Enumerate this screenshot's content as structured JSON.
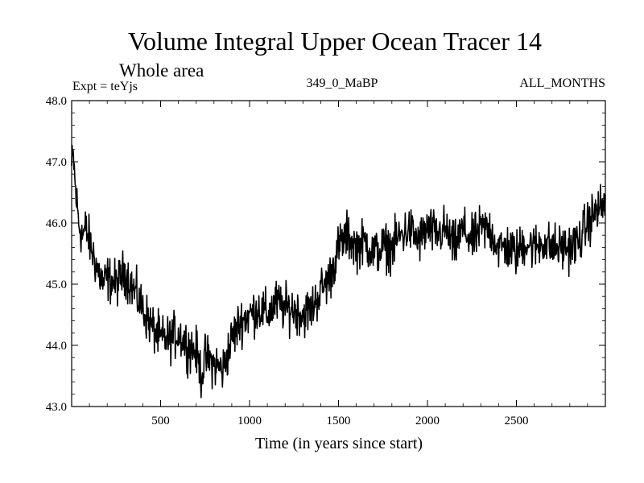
{
  "chart_data": {
    "type": "line",
    "title": "Volume Integral Upper Ocean Tracer 14",
    "subtitle": "Whole area",
    "experiment_label": "Expt = teYjs",
    "run_label": "349_0_MaBP",
    "months_label": "ALL_MONTHS",
    "xlabel": "Time (in years since start)",
    "ylabel": "",
    "xlim": [
      0,
      3000
    ],
    "ylim": [
      43.0,
      48.0
    ],
    "x_ticks": [
      500,
      1000,
      1500,
      2000,
      2500
    ],
    "y_ticks": [
      "43.0",
      "44.0",
      "45.0",
      "46.0",
      "47.0",
      "48.0"
    ],
    "y_tick_values": [
      43,
      44,
      45,
      46,
      47,
      48
    ],
    "series_anchors": {
      "x": [
        0,
        10,
        20,
        40,
        60,
        80,
        100,
        130,
        150,
        180,
        200,
        250,
        300,
        350,
        400,
        450,
        500,
        550,
        600,
        650,
        700,
        730,
        750,
        800,
        850,
        900,
        950,
        1000,
        1050,
        1100,
        1150,
        1200,
        1250,
        1300,
        1350,
        1400,
        1450,
        1500,
        1550,
        1600,
        1650,
        1700,
        1750,
        1800,
        1850,
        1900,
        1950,
        2000,
        2050,
        2100,
        2150,
        2200,
        2250,
        2300,
        2350,
        2400,
        2450,
        2500,
        2550,
        2600,
        2650,
        2700,
        2750,
        2800,
        2850,
        2900,
        2950,
        3000
      ],
      "y": [
        46.9,
        47.1,
        46.6,
        46.0,
        45.8,
        45.9,
        45.7,
        45.4,
        45.2,
        45.0,
        45.1,
        45.0,
        45.2,
        44.9,
        44.6,
        44.3,
        44.1,
        44.1,
        44.2,
        44.0,
        43.9,
        43.5,
        43.8,
        43.7,
        43.6,
        44.1,
        44.4,
        44.5,
        44.6,
        44.5,
        44.7,
        44.6,
        44.6,
        44.5,
        44.6,
        44.9,
        45.1,
        45.6,
        45.8,
        45.6,
        45.7,
        45.5,
        45.6,
        45.6,
        45.8,
        45.9,
        45.7,
        45.9,
        45.8,
        45.9,
        45.6,
        45.9,
        45.7,
        45.9,
        45.9,
        45.6,
        45.6,
        45.5,
        45.7,
        45.6,
        45.7,
        45.6,
        45.6,
        45.6,
        45.7,
        46.0,
        46.2,
        46.3
      ]
    },
    "noise_amplitude": 0.3
  }
}
